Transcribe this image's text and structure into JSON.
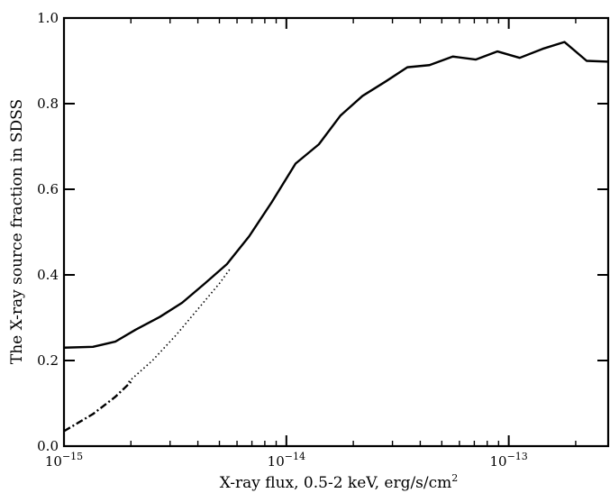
{
  "chart_data": {
    "type": "line",
    "title": "",
    "xlabel": "X-ray flux, 0.5-2 keV, erg/s/cm",
    "xlabel_superscript": "2",
    "ylabel": "The X-ray source fraction in SDSS",
    "xscale": "log",
    "xlim": [
      1e-15,
      2.8e-13
    ],
    "ylim": [
      0.0,
      1.0
    ],
    "x_ticks": [
      {
        "value": 1e-15,
        "base": "10",
        "exp": "−15"
      },
      {
        "value": 1e-14,
        "base": "10",
        "exp": "−14"
      },
      {
        "value": 1e-13,
        "base": "10",
        "exp": "−13"
      }
    ],
    "y_ticks": [
      {
        "value": 0.0,
        "label": "0.0"
      },
      {
        "value": 0.2,
        "label": "0.2"
      },
      {
        "value": 0.4,
        "label": "0.4"
      },
      {
        "value": 0.6,
        "label": "0.6"
      },
      {
        "value": 0.8,
        "label": "0.8"
      },
      {
        "value": 1.0,
        "label": "1.0"
      }
    ],
    "grid": false,
    "series": [
      {
        "style": "solid",
        "color": "#000000",
        "points": [
          [
            1e-15,
            0.23
          ],
          [
            1.35e-15,
            0.232
          ],
          [
            1.7e-15,
            0.244
          ],
          [
            2.1e-15,
            0.272
          ],
          [
            2.7e-15,
            0.302
          ],
          [
            3.4e-15,
            0.335
          ],
          [
            4.3e-15,
            0.38
          ],
          [
            5.4e-15,
            0.425
          ],
          [
            6.8e-15,
            0.49
          ],
          [
            8.6e-15,
            0.57
          ],
          [
            1.1e-14,
            0.66
          ],
          [
            1.4e-14,
            0.705
          ],
          [
            1.75e-14,
            0.772
          ],
          [
            2.2e-14,
            0.818
          ],
          [
            2.8e-14,
            0.852
          ],
          [
            3.5e-14,
            0.885
          ],
          [
            4.4e-14,
            0.89
          ],
          [
            5.6e-14,
            0.91
          ],
          [
            7.1e-14,
            0.903
          ],
          [
            8.9e-14,
            0.922
          ],
          [
            1.12e-13,
            0.907
          ],
          [
            1.42e-13,
            0.928
          ],
          [
            1.78e-13,
            0.944
          ],
          [
            2.24e-13,
            0.9
          ],
          [
            2.8e-13,
            0.898
          ]
        ]
      },
      {
        "style": "dotted",
        "color": "#000000",
        "points": [
          [
            1.95e-15,
            0.15
          ],
          [
            2.5e-15,
            0.2
          ],
          [
            3.2e-15,
            0.26
          ],
          [
            4e-15,
            0.32
          ],
          [
            5e-15,
            0.38
          ],
          [
            5.6e-15,
            0.415
          ]
        ]
      },
      {
        "style": "dashdot",
        "color": "#000000",
        "points": [
          [
            1e-15,
            0.035
          ],
          [
            1.35e-15,
            0.075
          ],
          [
            1.7e-15,
            0.115
          ],
          [
            2e-15,
            0.15
          ]
        ]
      }
    ]
  }
}
